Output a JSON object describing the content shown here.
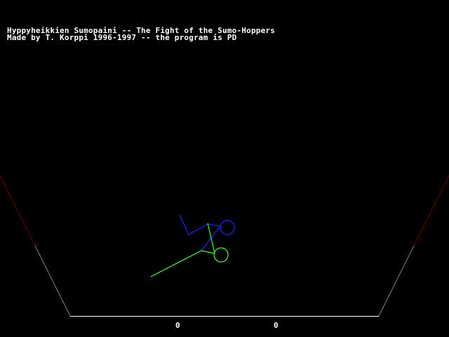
{
  "title_line": "Hyppyheikkien Sumopaini -- The Fight of the Sumo-Hoppers",
  "credit_line": "Made by T. Korppi 1996-1997 -- the program is PD",
  "scores": {
    "player1": "0",
    "player2": "0"
  },
  "colors": {
    "background": "#000000",
    "arena_edge": "#ffffff",
    "arena_danger": "#c00000",
    "player_blue": "#2020ff",
    "player_green": "#40ff20"
  }
}
